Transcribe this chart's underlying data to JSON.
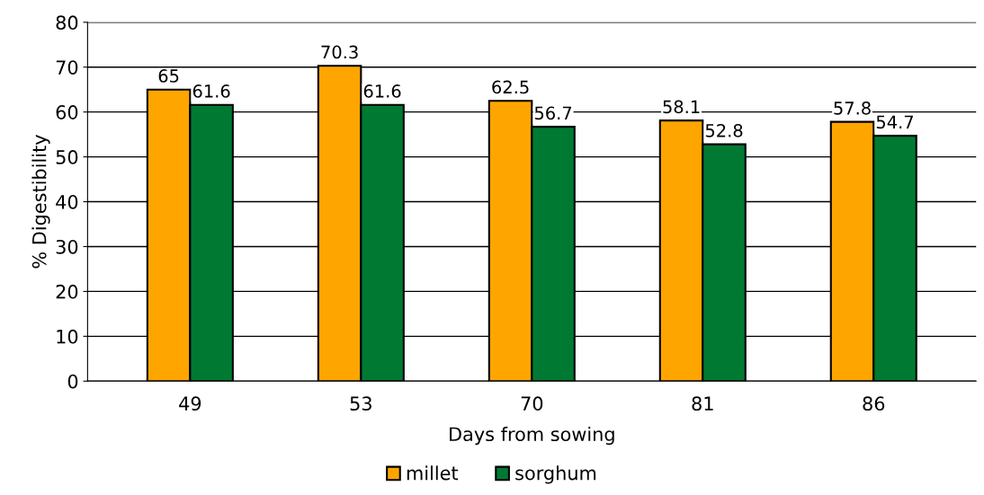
{
  "chart_data": {
    "type": "bar",
    "xlabel": "Days from sowing",
    "ylabel": "% Digestibility",
    "categories": [
      "49",
      "53",
      "70",
      "81",
      "86"
    ],
    "series": [
      {
        "name": "millet",
        "color": "#ffa500",
        "values": [
          65,
          70.3,
          62.5,
          58.1,
          57.8
        ]
      },
      {
        "name": "sorghum",
        "color": "#007a33",
        "values": [
          61.6,
          61.6,
          56.7,
          52.8,
          54.7
        ]
      }
    ],
    "ylim": [
      0,
      80
    ],
    "yticks": [
      0,
      10,
      20,
      30,
      40,
      50,
      60,
      70,
      80
    ],
    "grid": "y",
    "legend": "bottom",
    "data_labels": true
  }
}
